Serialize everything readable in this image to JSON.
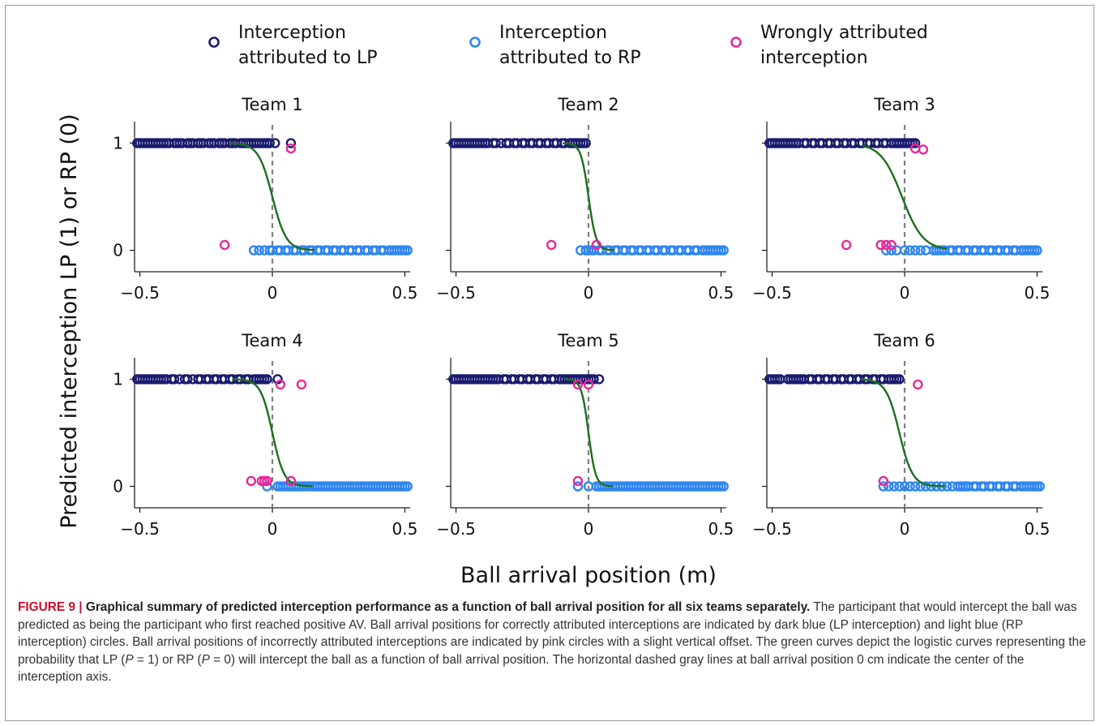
{
  "chart_data": {
    "type": "scatter",
    "xlabel": "Ball arrival position (m)",
    "ylabel": "Predicted interception LP (1) or RP (0)",
    "xlim": [
      -0.52,
      0.52
    ],
    "ylim": [
      -0.2,
      1.2
    ],
    "xticks": [
      -0.5,
      0,
      0.5
    ],
    "xtick_labels": [
      "−0.5",
      "0",
      "0.5"
    ],
    "yticks": [
      0,
      1
    ],
    "ytick_labels": [
      "0",
      "1"
    ],
    "legend": {
      "placement": "top",
      "entries": [
        {
          "key": "lp",
          "line1": "Interception",
          "line2": "attributed to LP",
          "color": "#1a1a6e"
        },
        {
          "key": "rp",
          "line1": "Interception",
          "line2": "attributed to RP",
          "color": "#2f86f0"
        },
        {
          "key": "wrong",
          "line1": "Wrongly attributed",
          "line2": "interception",
          "color": "#e6299a"
        }
      ]
    },
    "colors": {
      "lp": "#1a1a6e",
      "rp": "#2f86f0",
      "wrong": "#e6299a",
      "curve": "#1e6e1e",
      "center_line": "#808080"
    },
    "teams": [
      {
        "title": "Team 1",
        "logistic": {
          "x0": 0.0,
          "k": 38
        },
        "lp_x": [
          -0.51,
          -0.5,
          -0.49,
          -0.48,
          -0.47,
          -0.46,
          -0.45,
          -0.44,
          -0.43,
          -0.42,
          -0.41,
          -0.4,
          -0.39,
          -0.37,
          -0.36,
          -0.35,
          -0.34,
          -0.32,
          -0.31,
          -0.3,
          -0.28,
          -0.27,
          -0.26,
          -0.24,
          -0.23,
          -0.22,
          -0.2,
          -0.19,
          -0.18,
          -0.16,
          -0.15,
          -0.14,
          -0.12,
          -0.11,
          -0.1,
          -0.09,
          -0.08,
          -0.07,
          -0.06,
          -0.05,
          -0.04,
          -0.03,
          -0.02,
          -0.01,
          0.01,
          0.07
        ],
        "rp_x": [
          -0.07,
          -0.05,
          -0.03,
          -0.01,
          0.0,
          0.02,
          0.03,
          0.05,
          0.06,
          0.08,
          0.09,
          0.11,
          0.12,
          0.14,
          0.15,
          0.17,
          0.18,
          0.2,
          0.21,
          0.23,
          0.24,
          0.26,
          0.27,
          0.29,
          0.3,
          0.32,
          0.33,
          0.35,
          0.36,
          0.38,
          0.39,
          0.41,
          0.42,
          0.44,
          0.45,
          0.46,
          0.47,
          0.48,
          0.49,
          0.5,
          0.51
        ],
        "wrong": [
          [
            -0.18,
            0.05
          ],
          [
            0.07,
            0.95
          ]
        ]
      },
      {
        "title": "Team 2",
        "logistic": {
          "x0": 0.0,
          "k": 70
        },
        "lp_x": [
          -0.51,
          -0.5,
          -0.49,
          -0.48,
          -0.47,
          -0.46,
          -0.45,
          -0.44,
          -0.43,
          -0.42,
          -0.41,
          -0.4,
          -0.39,
          -0.38,
          -0.36,
          -0.35,
          -0.33,
          -0.31,
          -0.3,
          -0.28,
          -0.27,
          -0.25,
          -0.24,
          -0.22,
          -0.21,
          -0.19,
          -0.18,
          -0.16,
          -0.15,
          -0.13,
          -0.12,
          -0.1,
          -0.09,
          -0.07,
          -0.06,
          -0.05,
          -0.04,
          -0.03,
          -0.02,
          -0.01
        ],
        "rp_x": [
          -0.03,
          -0.01,
          0.0,
          0.01,
          0.02,
          0.04,
          0.05,
          0.07,
          0.08,
          0.1,
          0.11,
          0.13,
          0.14,
          0.16,
          0.17,
          0.19,
          0.2,
          0.22,
          0.23,
          0.25,
          0.26,
          0.28,
          0.29,
          0.31,
          0.32,
          0.34,
          0.35,
          0.37,
          0.38,
          0.4,
          0.41,
          0.43,
          0.44,
          0.45,
          0.46,
          0.47,
          0.48,
          0.49,
          0.5,
          0.51
        ],
        "wrong": [
          [
            -0.14,
            0.05
          ],
          [
            0.03,
            0.05
          ]
        ]
      },
      {
        "title": "Team 3",
        "logistic": {
          "x0": -0.01,
          "k": 25
        },
        "lp_x": [
          -0.51,
          -0.5,
          -0.49,
          -0.48,
          -0.47,
          -0.46,
          -0.45,
          -0.44,
          -0.43,
          -0.42,
          -0.41,
          -0.4,
          -0.38,
          -0.37,
          -0.35,
          -0.34,
          -0.32,
          -0.31,
          -0.29,
          -0.28,
          -0.26,
          -0.25,
          -0.23,
          -0.22,
          -0.2,
          -0.19,
          -0.17,
          -0.16,
          -0.14,
          -0.13,
          -0.11,
          -0.1,
          -0.08,
          -0.07,
          -0.05,
          -0.04,
          -0.03,
          -0.02,
          -0.01,
          0.0,
          0.01,
          0.02,
          0.03,
          0.04
        ],
        "rp_x": [
          -0.07,
          -0.05,
          -0.03,
          0.0,
          0.02,
          0.04,
          0.06,
          0.08,
          0.11,
          0.12,
          0.13,
          0.14,
          0.15,
          0.17,
          0.18,
          0.2,
          0.21,
          0.23,
          0.24,
          0.26,
          0.27,
          0.29,
          0.3,
          0.32,
          0.33,
          0.35,
          0.36,
          0.38,
          0.39,
          0.41,
          0.42,
          0.44,
          0.45,
          0.46,
          0.47,
          0.48,
          0.49,
          0.5
        ],
        "wrong": [
          [
            -0.22,
            0.05
          ],
          [
            -0.09,
            0.05
          ],
          [
            -0.07,
            0.05
          ],
          [
            -0.05,
            0.05
          ],
          [
            0.04,
            0.95
          ],
          [
            0.07,
            0.94
          ]
        ]
      },
      {
        "title": "Team 4",
        "logistic": {
          "x0": 0.0,
          "k": 45
        },
        "lp_x": [
          -0.51,
          -0.5,
          -0.49,
          -0.48,
          -0.47,
          -0.46,
          -0.45,
          -0.44,
          -0.43,
          -0.42,
          -0.41,
          -0.4,
          -0.38,
          -0.37,
          -0.35,
          -0.33,
          -0.32,
          -0.3,
          -0.28,
          -0.27,
          -0.25,
          -0.24,
          -0.22,
          -0.21,
          -0.19,
          -0.18,
          -0.16,
          -0.15,
          -0.13,
          -0.12,
          -0.1,
          -0.09,
          -0.07,
          -0.06,
          -0.05,
          -0.04,
          -0.03,
          -0.02,
          0.02
        ],
        "rp_x": [
          -0.02,
          0.02,
          0.03,
          0.04,
          0.05,
          0.06,
          0.07,
          0.08,
          0.09,
          0.1,
          0.11,
          0.12,
          0.13,
          0.14,
          0.15,
          0.16,
          0.17,
          0.18,
          0.19,
          0.2,
          0.21,
          0.22,
          0.23,
          0.24,
          0.25,
          0.26,
          0.27,
          0.28,
          0.29,
          0.3,
          0.31,
          0.32,
          0.33,
          0.34,
          0.35,
          0.36,
          0.37,
          0.38,
          0.39,
          0.4,
          0.41,
          0.42,
          0.43,
          0.44,
          0.45,
          0.46,
          0.47,
          0.48,
          0.49,
          0.5,
          0.51
        ],
        "wrong": [
          [
            -0.08,
            0.05
          ],
          [
            -0.04,
            0.05
          ],
          [
            -0.03,
            0.05
          ],
          [
            -0.02,
            0.05
          ],
          [
            0.03,
            0.95
          ],
          [
            0.07,
            0.05
          ],
          [
            0.11,
            0.95
          ]
        ]
      },
      {
        "title": "Team 5",
        "logistic": {
          "x0": 0.0,
          "k": 75
        },
        "lp_x": [
          -0.51,
          -0.5,
          -0.49,
          -0.48,
          -0.47,
          -0.46,
          -0.45,
          -0.44,
          -0.43,
          -0.42,
          -0.41,
          -0.4,
          -0.39,
          -0.38,
          -0.37,
          -0.36,
          -0.35,
          -0.34,
          -0.32,
          -0.31,
          -0.29,
          -0.28,
          -0.26,
          -0.25,
          -0.23,
          -0.22,
          -0.2,
          -0.19,
          -0.17,
          -0.16,
          -0.14,
          -0.13,
          -0.11,
          -0.1,
          -0.09,
          -0.08,
          -0.07,
          -0.06,
          -0.05,
          -0.04,
          -0.03,
          -0.02,
          -0.01,
          0.0,
          0.01,
          0.02,
          0.04
        ],
        "rp_x": [
          -0.04,
          0.0,
          0.03,
          0.04,
          0.05,
          0.06,
          0.07,
          0.08,
          0.09,
          0.1,
          0.11,
          0.12,
          0.13,
          0.14,
          0.15,
          0.16,
          0.17,
          0.18,
          0.19,
          0.2,
          0.21,
          0.22,
          0.23,
          0.24,
          0.25,
          0.26,
          0.27,
          0.28,
          0.29,
          0.3,
          0.31,
          0.32,
          0.33,
          0.34,
          0.35,
          0.36,
          0.37,
          0.38,
          0.39,
          0.4,
          0.41,
          0.42,
          0.43,
          0.44,
          0.45,
          0.46,
          0.47,
          0.48,
          0.49,
          0.5,
          0.51
        ],
        "wrong": [
          [
            -0.04,
            0.05
          ],
          [
            -0.04,
            0.95
          ],
          [
            0.0,
            0.95
          ]
        ]
      },
      {
        "title": "Team 6",
        "logistic": {
          "x0": -0.02,
          "k": 40
        },
        "lp_x": [
          -0.51,
          -0.5,
          -0.49,
          -0.48,
          -0.47,
          -0.44,
          -0.43,
          -0.42,
          -0.41,
          -0.4,
          -0.39,
          -0.38,
          -0.36,
          -0.35,
          -0.33,
          -0.32,
          -0.3,
          -0.29,
          -0.27,
          -0.26,
          -0.24,
          -0.23,
          -0.21,
          -0.2,
          -0.18,
          -0.17,
          -0.15,
          -0.14,
          -0.12,
          -0.11,
          -0.09,
          -0.08,
          -0.06,
          -0.05,
          -0.04,
          -0.03,
          -0.02
        ],
        "rp_x": [
          -0.08,
          -0.06,
          -0.04,
          -0.02,
          0.0,
          0.02,
          0.04,
          0.06,
          0.08,
          0.1,
          0.12,
          0.14,
          0.16,
          0.18,
          0.2,
          0.21,
          0.22,
          0.23,
          0.24,
          0.26,
          0.27,
          0.29,
          0.3,
          0.32,
          0.33,
          0.35,
          0.36,
          0.38,
          0.39,
          0.41,
          0.42,
          0.44,
          0.45,
          0.46,
          0.47,
          0.48,
          0.49,
          0.5,
          0.51
        ],
        "wrong": [
          [
            -0.08,
            0.05
          ],
          [
            0.05,
            0.95
          ]
        ]
      }
    ]
  },
  "caption": {
    "label": "FIGURE 9 |",
    "title": "Graphical summary of predicted interception performance as a function of ball arrival position for all six teams separately.",
    "body_parts": [
      " The participant that would intercept the ball was predicted as being the participant who first reached positive AV. Ball arrival positions for correctly attributed interceptions are indicated by dark blue (LP interception) and light blue (RP interception) circles. Ball arrival positions of incorrectly attributed interceptions are indicated by pink circles with a slight vertical offset. The green curves depict the logistic curves representing the probability that LP (",
      "P",
      " = 1) or RP (",
      "P",
      " = 0) will intercept the ball as a function of ball arrival position. The horizontal dashed gray lines at ball arrival position 0 cm indicate the center of the interception axis."
    ]
  }
}
